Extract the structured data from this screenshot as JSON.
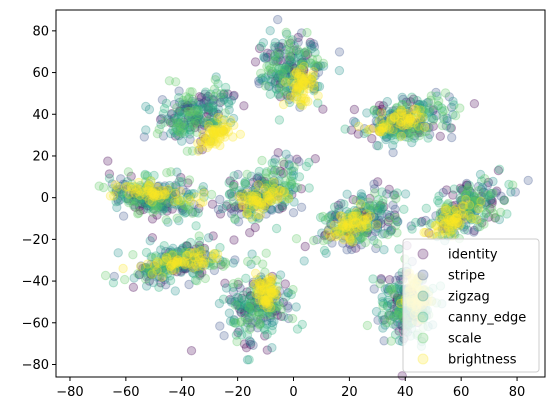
{
  "chart_data": {
    "type": "scatter",
    "title": "",
    "xlabel": "",
    "ylabel": "",
    "xlim": [
      -85,
      90
    ],
    "ylim": [
      -86,
      90
    ],
    "x_ticks": [
      -80,
      -60,
      -40,
      -20,
      0,
      20,
      40,
      60,
      80
    ],
    "y_ticks": [
      -80,
      -60,
      -40,
      -20,
      0,
      20,
      40,
      60,
      80
    ],
    "x_tick_labels": [
      "−80",
      "−60",
      "−40",
      "−20",
      "0",
      "20",
      "40",
      "60",
      "80"
    ],
    "y_tick_labels": [
      "−80",
      "−60",
      "−40",
      "−20",
      "0",
      "20",
      "40",
      "60",
      "80"
    ],
    "grid": false,
    "legend_position": "lower-right",
    "point_alpha": 0.25,
    "series": [
      {
        "name": "identity",
        "color": "#440154"
      },
      {
        "name": "stripe",
        "color": "#3b528b"
      },
      {
        "name": "zigzag",
        "color": "#21918c"
      },
      {
        "name": "canny_edge",
        "color": "#2ab07f"
      },
      {
        "name": "scale",
        "color": "#5ec962"
      },
      {
        "name": "brightness",
        "color": "#fde725"
      }
    ],
    "clusters": [
      {
        "center": [
          -50,
          0
        ],
        "spread": [
          17,
          9
        ],
        "angle": -10,
        "label_center": [
          -50,
          2
        ],
        "label_spread": [
          14,
          4
        ]
      },
      {
        "center": [
          -42,
          -32
        ],
        "spread": [
          17,
          8
        ],
        "angle": 15,
        "label_center": [
          -40,
          -31
        ],
        "label_spread": [
          13,
          4
        ]
      },
      {
        "center": [
          -35,
          40
        ],
        "spread": [
          10,
          14
        ],
        "angle": -40,
        "label_center": [
          -28,
          30
        ],
        "label_spread": [
          4,
          9
        ]
      },
      {
        "center": [
          0,
          62
        ],
        "spread": [
          11,
          15
        ],
        "angle": 0,
        "label_center": [
          3,
          53
        ],
        "label_spread": [
          4,
          8
        ]
      },
      {
        "center": [
          -10,
          3
        ],
        "spread": [
          10,
          14
        ],
        "angle": -45,
        "label_center": [
          -12,
          0
        ],
        "label_spread": [
          5,
          9
        ]
      },
      {
        "center": [
          -13,
          -52
        ],
        "spread": [
          10,
          16
        ],
        "angle": 0,
        "label_center": [
          -10,
          -45
        ],
        "label_spread": [
          4,
          8
        ]
      },
      {
        "center": [
          24,
          -11
        ],
        "spread": [
          10,
          16
        ],
        "angle": -50,
        "label_center": [
          20,
          -14
        ],
        "label_spread": [
          5,
          9
        ]
      },
      {
        "center": [
          40,
          37
        ],
        "spread": [
          15,
          9
        ],
        "angle": 20,
        "label_center": [
          37,
          36
        ],
        "label_spread": [
          11,
          4
        ]
      },
      {
        "center": [
          40,
          -52
        ],
        "spread": [
          9,
          15
        ],
        "angle": 0,
        "label_center": [
          44,
          -48
        ],
        "label_spread": [
          4,
          9
        ]
      },
      {
        "center": [
          62,
          -5
        ],
        "spread": [
          9,
          16
        ],
        "angle": -50,
        "label_center": [
          57,
          -11
        ],
        "label_spread": [
          4,
          11
        ]
      }
    ]
  }
}
